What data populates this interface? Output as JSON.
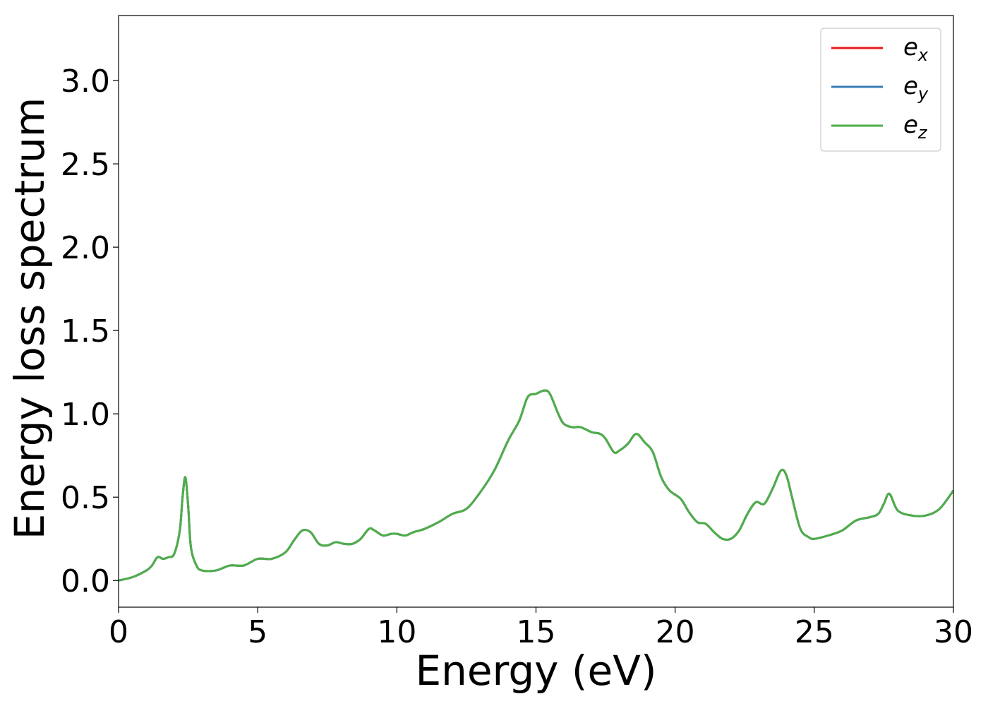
{
  "chart_data": {
    "type": "line",
    "title": "",
    "xlabel": "Energy (eV)",
    "ylabel": "Energy loss spectrum",
    "xlim": [
      0,
      30
    ],
    "ylim": [
      -0.16,
      3.39
    ],
    "xticks": [
      0,
      5,
      10,
      15,
      20,
      25,
      30
    ],
    "xtick_labels": [
      "0",
      "5",
      "10",
      "15",
      "20",
      "25",
      "30"
    ],
    "yticks": [
      0.0,
      0.5,
      1.0,
      1.5,
      2.0,
      2.5,
      3.0
    ],
    "ytick_labels": [
      "0.0",
      "0.5",
      "1.0",
      "1.5",
      "2.0",
      "2.5",
      "3.0"
    ],
    "grid": false,
    "legend_position": "top-right",
    "colors": {
      "e_x": "#e41a1c",
      "e_y": "#377eb8",
      "e_z": "#4daf4a"
    },
    "x": [
      0,
      0.5,
      1.0,
      1.2,
      1.4,
      1.6,
      1.8,
      2.0,
      2.2,
      2.3,
      2.4,
      2.5,
      2.6,
      2.8,
      3.0,
      3.5,
      4.0,
      4.5,
      5.0,
      5.5,
      6.0,
      6.3,
      6.6,
      6.9,
      7.2,
      7.5,
      7.8,
      8.1,
      8.4,
      8.7,
      9.0,
      9.2,
      9.5,
      9.8,
      10.0,
      10.3,
      10.6,
      11.0,
      11.5,
      12.0,
      12.5,
      13.0,
      13.5,
      14.0,
      14.4,
      14.7,
      15.0,
      15.3,
      15.5,
      15.8,
      16.0,
      16.3,
      16.6,
      17.0,
      17.3,
      17.5,
      17.8,
      18.0,
      18.3,
      18.6,
      18.9,
      19.2,
      19.5,
      19.8,
      20.2,
      20.5,
      20.8,
      21.1,
      21.4,
      21.7,
      22.0,
      22.3,
      22.6,
      22.9,
      23.2,
      23.5,
      23.8,
      24.0,
      24.2,
      24.5,
      24.8,
      25.0,
      25.5,
      26.0,
      26.5,
      27.0,
      27.3,
      27.5,
      27.7,
      28.0,
      28.5,
      29.0,
      29.5,
      30.0
    ],
    "series": [
      {
        "name": "e_x",
        "values": [
          0.0,
          0.02,
          0.06,
          0.09,
          0.14,
          0.13,
          0.14,
          0.16,
          0.3,
          0.5,
          0.62,
          0.45,
          0.2,
          0.09,
          0.06,
          0.06,
          0.09,
          0.09,
          0.13,
          0.13,
          0.17,
          0.24,
          0.3,
          0.29,
          0.22,
          0.21,
          0.23,
          0.22,
          0.22,
          0.25,
          0.31,
          0.3,
          0.27,
          0.28,
          0.28,
          0.27,
          0.29,
          0.31,
          0.35,
          0.4,
          0.43,
          0.53,
          0.66,
          0.84,
          0.96,
          1.1,
          1.12,
          1.14,
          1.12,
          1.0,
          0.94,
          0.92,
          0.92,
          0.89,
          0.88,
          0.85,
          0.77,
          0.78,
          0.82,
          0.88,
          0.83,
          0.77,
          0.62,
          0.54,
          0.49,
          0.41,
          0.35,
          0.34,
          0.29,
          0.25,
          0.25,
          0.3,
          0.4,
          0.47,
          0.46,
          0.55,
          0.66,
          0.63,
          0.5,
          0.31,
          0.26,
          0.25,
          0.27,
          0.3,
          0.36,
          0.38,
          0.4,
          0.46,
          0.52,
          0.42,
          0.39,
          0.39,
          0.43,
          0.54
        ]
      },
      {
        "name": "e_y",
        "values": [
          0.0,
          0.02,
          0.06,
          0.09,
          0.14,
          0.13,
          0.14,
          0.16,
          0.3,
          0.5,
          0.62,
          0.45,
          0.2,
          0.09,
          0.06,
          0.06,
          0.09,
          0.09,
          0.13,
          0.13,
          0.17,
          0.24,
          0.3,
          0.29,
          0.22,
          0.21,
          0.23,
          0.22,
          0.22,
          0.25,
          0.31,
          0.3,
          0.27,
          0.28,
          0.28,
          0.27,
          0.29,
          0.31,
          0.35,
          0.4,
          0.43,
          0.53,
          0.66,
          0.84,
          0.96,
          1.1,
          1.12,
          1.14,
          1.12,
          1.0,
          0.94,
          0.92,
          0.92,
          0.89,
          0.88,
          0.85,
          0.77,
          0.78,
          0.82,
          0.88,
          0.83,
          0.77,
          0.62,
          0.54,
          0.49,
          0.41,
          0.35,
          0.34,
          0.29,
          0.25,
          0.25,
          0.3,
          0.4,
          0.47,
          0.46,
          0.55,
          0.66,
          0.63,
          0.5,
          0.31,
          0.26,
          0.25,
          0.27,
          0.3,
          0.36,
          0.38,
          0.4,
          0.46,
          0.52,
          0.42,
          0.39,
          0.39,
          0.43,
          0.54
        ]
      },
      {
        "name": "e_z",
        "values": [
          0.0,
          0.02,
          0.06,
          0.09,
          0.14,
          0.13,
          0.14,
          0.16,
          0.3,
          0.5,
          0.62,
          0.45,
          0.2,
          0.09,
          0.06,
          0.06,
          0.09,
          0.09,
          0.13,
          0.13,
          0.17,
          0.24,
          0.3,
          0.29,
          0.22,
          0.21,
          0.23,
          0.22,
          0.22,
          0.25,
          0.31,
          0.3,
          0.27,
          0.28,
          0.28,
          0.27,
          0.29,
          0.31,
          0.35,
          0.4,
          0.43,
          0.53,
          0.66,
          0.84,
          0.96,
          1.1,
          1.12,
          1.14,
          1.12,
          1.0,
          0.94,
          0.92,
          0.92,
          0.89,
          0.88,
          0.85,
          0.77,
          0.78,
          0.82,
          0.88,
          0.83,
          0.77,
          0.62,
          0.54,
          0.49,
          0.41,
          0.35,
          0.34,
          0.29,
          0.25,
          0.25,
          0.3,
          0.4,
          0.47,
          0.46,
          0.55,
          0.66,
          0.63,
          0.5,
          0.31,
          0.26,
          0.25,
          0.27,
          0.3,
          0.36,
          0.38,
          0.4,
          0.46,
          0.52,
          0.42,
          0.39,
          0.39,
          0.43,
          0.54
        ]
      }
    ],
    "legend": [
      {
        "series": "e_x",
        "base": "e",
        "sub": "x"
      },
      {
        "series": "e_y",
        "base": "e",
        "sub": "y"
      },
      {
        "series": "e_z",
        "base": "e",
        "sub": "z"
      }
    ]
  }
}
